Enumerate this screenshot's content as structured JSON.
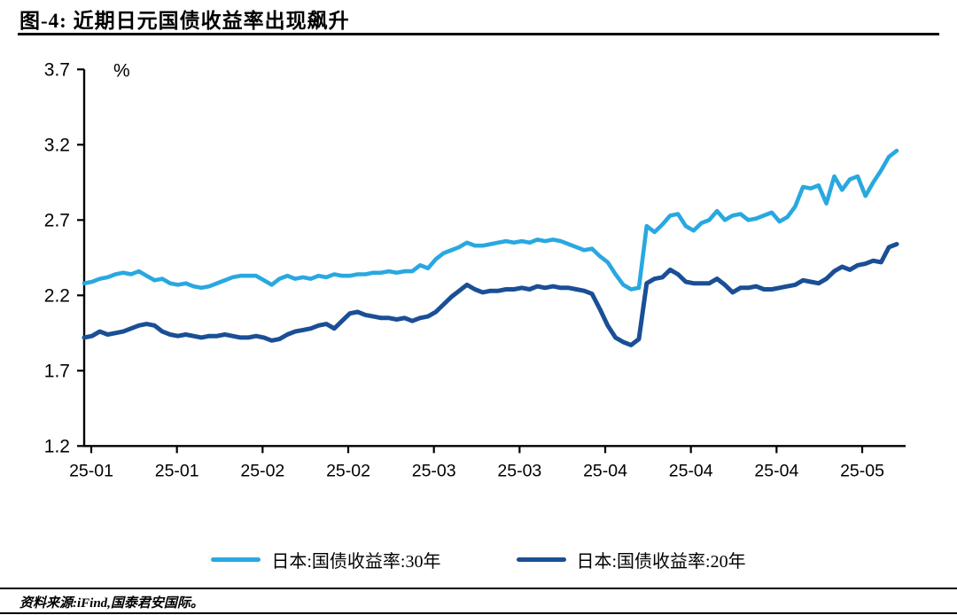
{
  "header": {
    "title": "图-4: 近期日元国债收益率出现飙升"
  },
  "chart_data": {
    "type": "line",
    "title": "近期日元国债收益率出现飙升",
    "unit_label": "%",
    "xlabel": "",
    "ylabel": "%",
    "ylim": [
      1.2,
      3.7
    ],
    "y_ticks": [
      3.7,
      3.2,
      2.7,
      2.2,
      1.7,
      1.2
    ],
    "x_tick_labels": [
      "25-01",
      "25-01",
      "25-02",
      "25-02",
      "25-03",
      "25-03",
      "25-04",
      "25-04",
      "25-04",
      "25-05"
    ],
    "grid": false,
    "legend_position": "bottom",
    "axis_color": "#000000",
    "series": [
      {
        "name": "日本:国债收益率:30年",
        "color": "#29A8E0",
        "values": [
          2.28,
          2.29,
          2.31,
          2.32,
          2.34,
          2.35,
          2.34,
          2.36,
          2.33,
          2.3,
          2.31,
          2.28,
          2.27,
          2.28,
          2.26,
          2.25,
          2.26,
          2.28,
          2.3,
          2.32,
          2.33,
          2.33,
          2.33,
          2.3,
          2.27,
          2.31,
          2.33,
          2.31,
          2.32,
          2.31,
          2.33,
          2.32,
          2.34,
          2.33,
          2.33,
          2.34,
          2.34,
          2.35,
          2.35,
          2.36,
          2.35,
          2.36,
          2.36,
          2.4,
          2.38,
          2.44,
          2.48,
          2.5,
          2.52,
          2.55,
          2.53,
          2.53,
          2.54,
          2.55,
          2.56,
          2.55,
          2.56,
          2.55,
          2.57,
          2.56,
          2.57,
          2.56,
          2.54,
          2.52,
          2.5,
          2.51,
          2.46,
          2.42,
          2.34,
          2.27,
          2.24,
          2.25,
          2.66,
          2.62,
          2.67,
          2.73,
          2.74,
          2.66,
          2.63,
          2.68,
          2.7,
          2.76,
          2.7,
          2.73,
          2.74,
          2.7,
          2.71,
          2.73,
          2.75,
          2.69,
          2.72,
          2.79,
          2.92,
          2.91,
          2.93,
          2.81,
          2.99,
          2.9,
          2.97,
          2.99,
          2.86,
          2.95,
          3.03,
          3.12,
          3.16
        ]
      },
      {
        "name": "日本:国债收益率:20年",
        "color": "#1A4F96",
        "values": [
          1.92,
          1.93,
          1.96,
          1.94,
          1.95,
          1.96,
          1.98,
          2.0,
          2.01,
          2.0,
          1.96,
          1.94,
          1.93,
          1.94,
          1.93,
          1.92,
          1.93,
          1.93,
          1.94,
          1.93,
          1.92,
          1.92,
          1.93,
          1.92,
          1.9,
          1.91,
          1.94,
          1.96,
          1.97,
          1.98,
          2.0,
          2.01,
          1.98,
          2.03,
          2.08,
          2.09,
          2.07,
          2.06,
          2.05,
          2.05,
          2.04,
          2.05,
          2.03,
          2.05,
          2.06,
          2.09,
          2.14,
          2.19,
          2.23,
          2.27,
          2.24,
          2.22,
          2.23,
          2.23,
          2.24,
          2.24,
          2.25,
          2.24,
          2.26,
          2.25,
          2.26,
          2.25,
          2.25,
          2.24,
          2.23,
          2.21,
          2.11,
          2.0,
          1.92,
          1.89,
          1.87,
          1.91,
          2.28,
          2.31,
          2.32,
          2.37,
          2.34,
          2.29,
          2.28,
          2.28,
          2.28,
          2.31,
          2.27,
          2.22,
          2.25,
          2.25,
          2.26,
          2.24,
          2.24,
          2.25,
          2.26,
          2.27,
          2.3,
          2.29,
          2.28,
          2.31,
          2.36,
          2.39,
          2.37,
          2.4,
          2.41,
          2.43,
          2.42,
          2.52,
          2.54
        ]
      }
    ]
  },
  "footer": {
    "source": "资料来源:iFind,国泰君安国际。"
  }
}
